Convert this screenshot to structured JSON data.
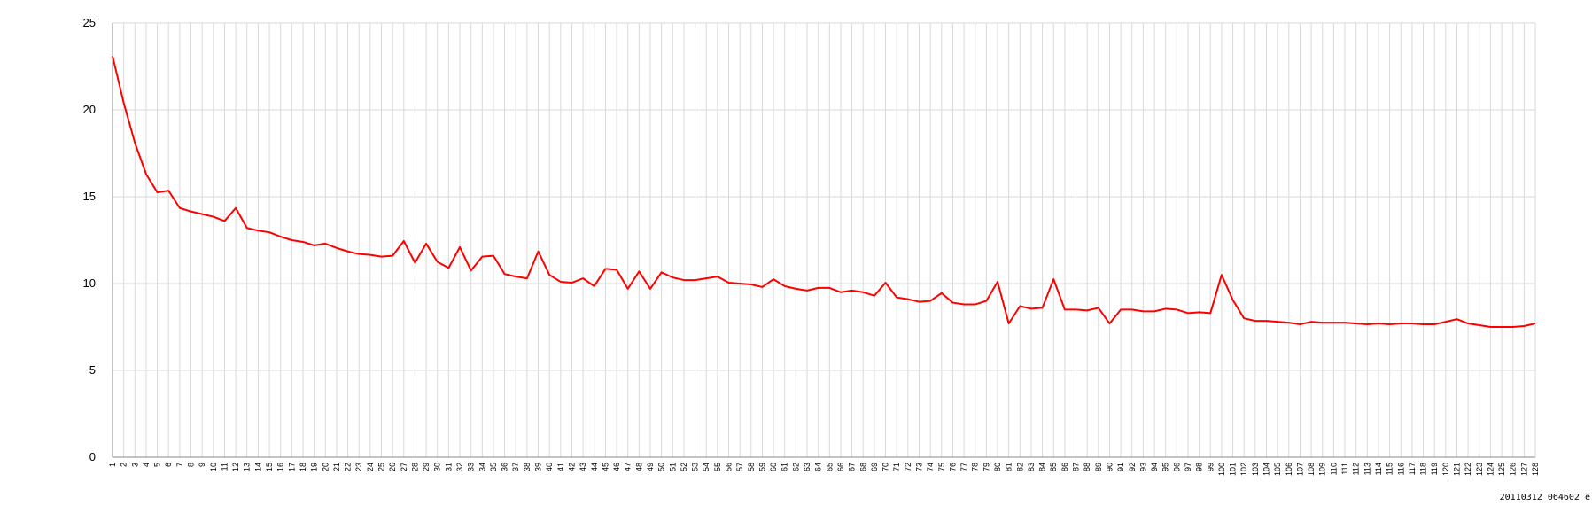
{
  "caption": "20110312_064602_e",
  "colors": {
    "line": "#ff0000",
    "grid": "#d9d9d9",
    "axis": "#888888"
  },
  "chart_data": {
    "type": "line",
    "title": "",
    "xlabel": "",
    "ylabel": "",
    "ylim": [
      0,
      25
    ],
    "yticks": [
      0,
      5,
      10,
      15,
      20,
      25
    ],
    "grid": true,
    "legend": "none",
    "x": [
      1,
      2,
      3,
      4,
      5,
      6,
      7,
      8,
      9,
      10,
      11,
      12,
      13,
      14,
      15,
      16,
      17,
      18,
      19,
      20,
      21,
      22,
      23,
      24,
      25,
      26,
      27,
      28,
      29,
      30,
      31,
      32,
      33,
      34,
      35,
      36,
      37,
      38,
      39,
      40,
      41,
      42,
      43,
      44,
      45,
      46,
      47,
      48,
      49,
      50,
      51,
      52,
      53,
      54,
      55,
      56,
      57,
      58,
      59,
      60,
      61,
      62,
      63,
      64,
      65,
      66,
      67,
      68,
      69,
      70,
      71,
      72,
      73,
      74,
      75,
      76,
      77,
      78,
      79,
      80,
      81,
      82,
      83,
      84,
      85,
      86,
      87,
      88,
      89,
      90,
      91,
      92,
      93,
      94,
      95,
      96,
      97,
      98,
      99,
      100,
      101,
      102,
      103,
      104,
      105,
      106,
      107,
      108,
      109,
      110,
      111,
      112,
      113,
      114,
      115,
      116,
      117,
      118,
      119,
      120,
      121,
      122,
      123,
      124,
      125,
      126,
      127,
      128
    ],
    "series": [
      {
        "values": [
          23.1,
          20.4,
          18.1,
          16.3,
          15.25,
          15.35,
          14.35,
          14.15,
          14.0,
          13.85,
          13.6,
          14.35,
          13.2,
          13.05,
          12.95,
          12.7,
          12.5,
          12.4,
          12.2,
          12.3,
          12.05,
          11.85,
          11.7,
          11.65,
          11.55,
          11.6,
          12.45,
          11.2,
          12.3,
          11.25,
          10.9,
          12.1,
          10.75,
          11.55,
          11.6,
          10.55,
          10.4,
          10.3,
          11.85,
          10.5,
          10.1,
          10.05,
          10.3,
          9.85,
          10.85,
          10.8,
          9.7,
          10.7,
          9.7,
          10.65,
          10.35,
          10.2,
          10.2,
          10.3,
          10.4,
          10.05,
          10.0,
          9.95,
          9.8,
          10.25,
          9.85,
          9.7,
          9.6,
          9.75,
          9.75,
          9.5,
          9.6,
          9.5,
          9.3,
          10.05,
          9.2,
          9.1,
          8.95,
          9.0,
          9.45,
          8.9,
          8.8,
          8.8,
          9.0,
          10.1,
          7.7,
          8.7,
          8.55,
          8.6,
          10.25,
          8.5,
          8.5,
          8.45,
          8.6,
          7.7,
          8.5,
          8.5,
          8.4,
          8.4,
          8.55,
          8.5,
          8.3,
          8.35,
          8.3,
          10.5,
          9.05,
          8.0,
          7.85,
          7.85,
          7.8,
          7.75,
          7.65,
          7.8,
          7.75,
          7.75,
          7.75,
          7.7,
          7.65,
          7.7,
          7.65,
          7.7,
          7.7,
          7.65,
          7.65,
          7.8,
          7.95,
          7.7,
          7.6,
          7.5,
          7.5,
          7.5,
          7.55,
          7.7
        ]
      }
    ]
  }
}
